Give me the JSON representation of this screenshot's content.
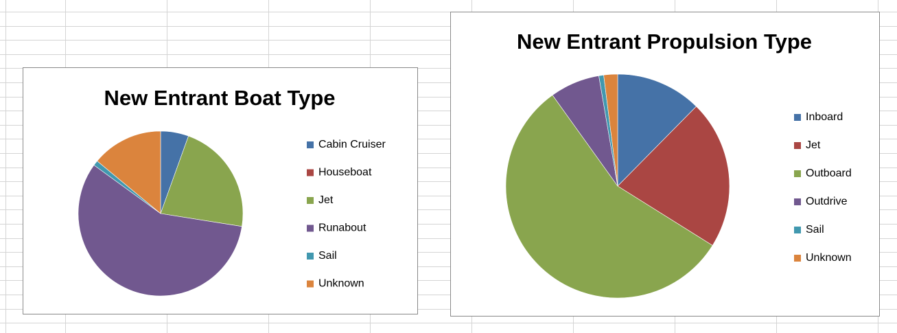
{
  "chart_data": [
    {
      "type": "pie",
      "title": "New Entrant Boat Type",
      "categories": [
        "Cabin Cruiser",
        "Houseboat",
        "Jet",
        "Runabout",
        "Sail",
        "Unknown"
      ],
      "values": [
        5.5,
        0,
        22,
        57.5,
        1,
        14
      ],
      "colors": [
        "#4572a7",
        "#aa4643",
        "#89a54e",
        "#71588f",
        "#4198af",
        "#db843d"
      ]
    },
    {
      "type": "pie",
      "title": "New Entrant Propulsion Type",
      "categories": [
        "Inboard",
        "Jet",
        "Outboard",
        "Outdrive",
        "Sail",
        "Unknown"
      ],
      "values": [
        12.4,
        21.5,
        56.2,
        7.2,
        0.7,
        2
      ],
      "colors": [
        "#4572a7",
        "#aa4643",
        "#89a54e",
        "#71588f",
        "#4198af",
        "#db843d"
      ]
    }
  ]
}
